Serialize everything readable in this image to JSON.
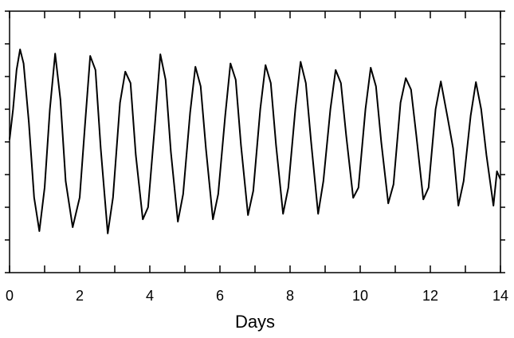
{
  "chart_data": {
    "type": "line",
    "xlabel": "Days",
    "x": [
      0,
      0.1,
      0.2,
      0.3,
      0.4,
      0.55,
      0.7,
      0.85,
      1.0,
      1.15,
      1.3,
      1.45,
      1.6,
      1.8,
      2.0,
      2.15,
      2.3,
      2.45,
      2.6,
      2.8,
      2.95,
      3.15,
      3.3,
      3.45,
      3.6,
      3.8,
      3.95,
      4.15,
      4.3,
      4.45,
      4.6,
      4.8,
      4.95,
      5.15,
      5.3,
      5.45,
      5.6,
      5.8,
      5.95,
      6.15,
      6.3,
      6.45,
      6.6,
      6.8,
      6.95,
      7.15,
      7.3,
      7.45,
      7.6,
      7.8,
      7.95,
      8.15,
      8.3,
      8.45,
      8.6,
      8.8,
      8.95,
      9.15,
      9.3,
      9.45,
      9.6,
      9.8,
      9.95,
      10.15,
      10.3,
      10.45,
      10.6,
      10.8,
      10.95,
      11.15,
      11.3,
      11.45,
      11.6,
      11.8,
      11.95,
      12.15,
      12.3,
      12.5,
      12.65,
      12.8,
      12.95,
      13.15,
      13.3,
      13.45,
      13.6,
      13.8,
      13.9,
      14.0
    ],
    "series": [
      {
        "color": "#000000",
        "values": [
          4.07,
          5.0,
          6.2,
          6.83,
          6.4,
          4.6,
          2.3,
          1.27,
          2.6,
          5.0,
          6.7,
          5.3,
          2.8,
          1.39,
          2.3,
          4.5,
          6.63,
          6.2,
          3.8,
          1.2,
          2.3,
          5.2,
          6.15,
          5.8,
          3.6,
          1.63,
          2.0,
          4.6,
          6.68,
          5.9,
          3.7,
          1.56,
          2.4,
          4.9,
          6.3,
          5.7,
          3.8,
          1.63,
          2.4,
          4.8,
          6.4,
          5.9,
          3.9,
          1.76,
          2.5,
          5.0,
          6.35,
          5.8,
          3.9,
          1.8,
          2.6,
          5.0,
          6.45,
          5.8,
          4.0,
          1.8,
          2.8,
          5.0,
          6.2,
          5.8,
          4.2,
          2.29,
          2.6,
          5.0,
          6.27,
          5.7,
          4.0,
          2.12,
          2.7,
          5.2,
          5.95,
          5.6,
          4.2,
          2.24,
          2.6,
          5.0,
          5.85,
          4.7,
          3.8,
          2.05,
          2.8,
          4.8,
          5.83,
          5.0,
          3.6,
          2.05,
          3.1,
          2.85
        ]
      }
    ],
    "xlim": [
      0,
      14
    ],
    "xticks": [
      0,
      2,
      4,
      6,
      8,
      10,
      12,
      14
    ],
    "xminorticks": [
      1,
      3,
      5,
      7,
      9,
      11,
      13
    ],
    "ylim": [
      0,
      8
    ],
    "yticks": [
      0,
      1,
      2,
      3,
      4,
      5,
      6,
      7,
      8
    ],
    "grid": false
  }
}
